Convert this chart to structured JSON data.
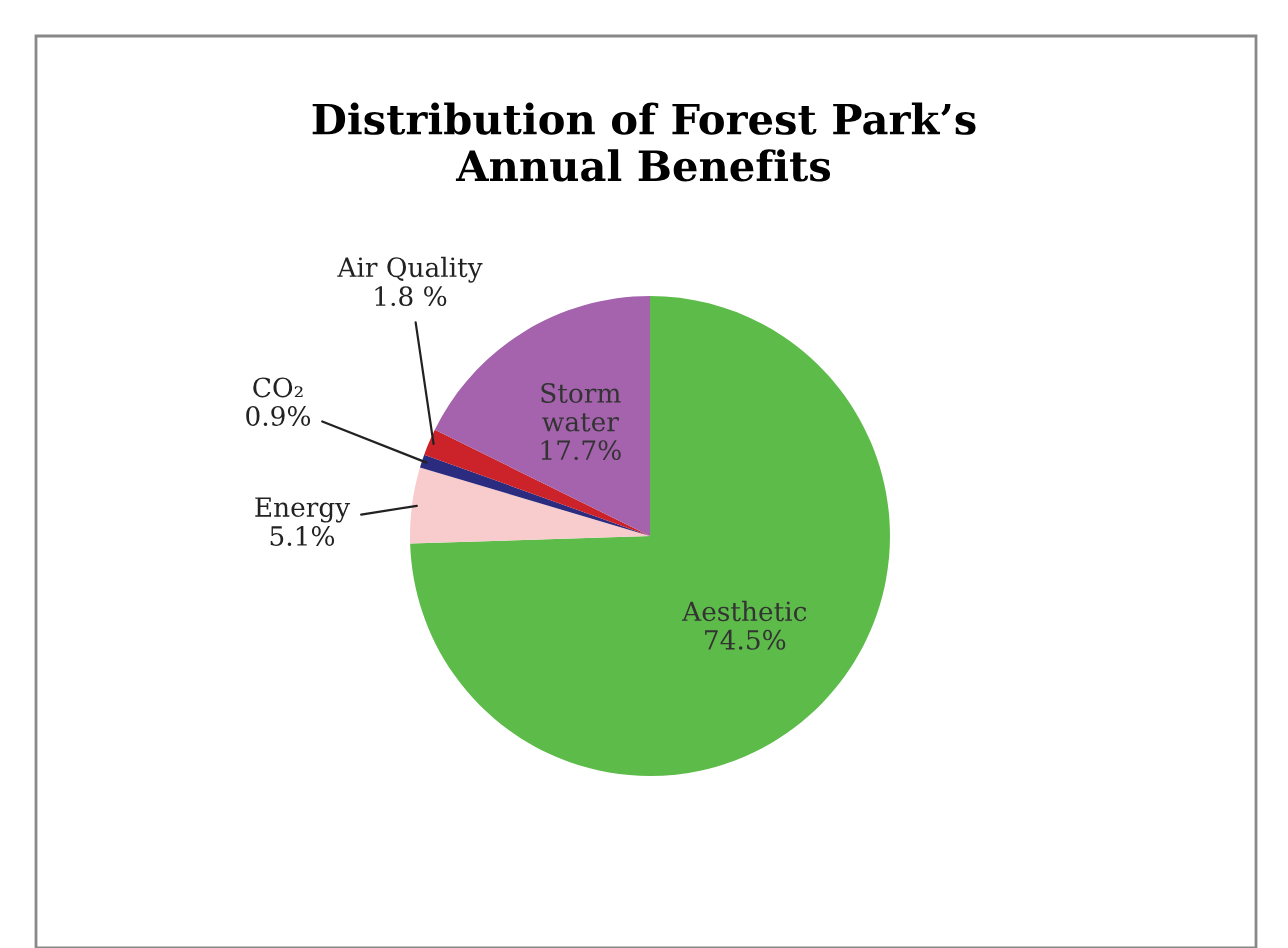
{
  "chart_data": {
    "type": "pie",
    "title": "Distribution of Forest Park’s\nAnnual Benefits",
    "categories": [
      "Aesthetic",
      "Energy",
      "CO₂",
      "Air Quality",
      "Storm\nwater"
    ],
    "values": [
      74.5,
      5.1,
      0.9,
      1.8,
      17.7
    ],
    "value_labels": [
      "74.5%",
      "5.1%",
      "0.9%",
      "1.8 %",
      "17.7%"
    ],
    "colors": [
      "#5dbb4a",
      "#f8cccc",
      "#2b2b80",
      "#cc2229",
      "#a463ac"
    ],
    "legend": false
  }
}
